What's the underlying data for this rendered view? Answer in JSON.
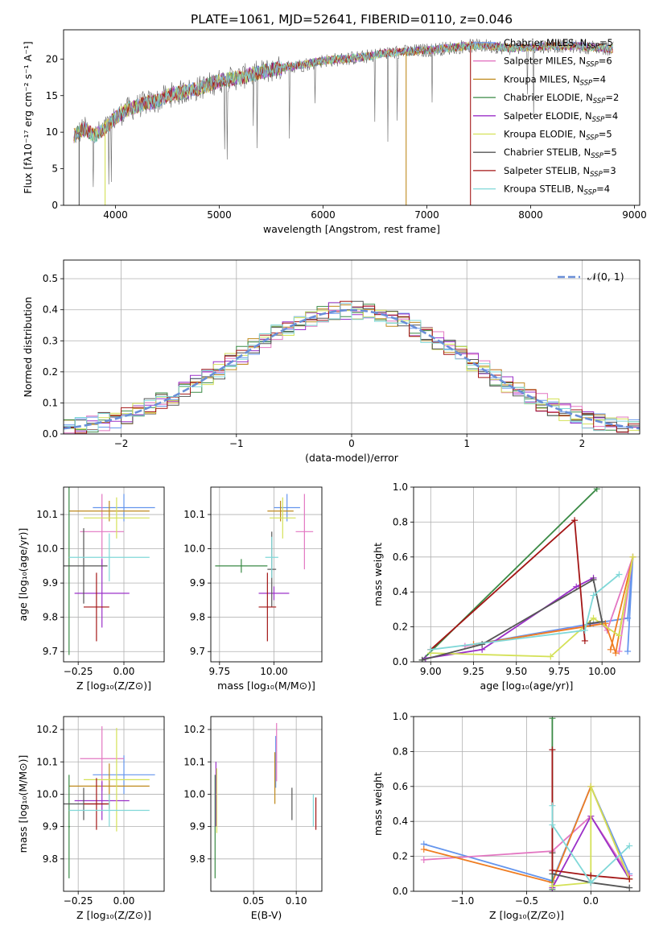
{
  "figure_title": "PLATE=1061, MJD=52641, FIBERID=0110, z=0.046",
  "model_colors": [
    "#6495ed",
    "#e377c2",
    "#bf8a1d",
    "#3a8a45",
    "#9b30c8",
    "#d4e157",
    "#555555",
    "#a31515",
    "#80d8d8"
  ],
  "chart_data": [
    {
      "id": "spectrum",
      "type": "line",
      "xlabel": "wavelength [Angstrom, rest frame]",
      "ylabel": "Flux [fλ10⁻¹⁷ erg cm⁻² s⁻¹ A⁻¹]",
      "xlim": [
        3500,
        9050
      ],
      "ylim": [
        0,
        24
      ],
      "xticks": [
        4000,
        5000,
        6000,
        7000,
        8000,
        9000
      ],
      "yticks": [
        0,
        5,
        10,
        15,
        20
      ],
      "legend_position": "right",
      "legend": [
        {
          "label": "Chabrier MILES, N",
          "sub": "SSP",
          "value": "=5",
          "color": "#6495ed"
        },
        {
          "label": "Salpeter MILES, N",
          "sub": "SSP",
          "value": "=6",
          "color": "#e377c2"
        },
        {
          "label": "Kroupa MILES, N",
          "sub": "SSP",
          "value": "=4",
          "color": "#bf8a1d"
        },
        {
          "label": "Chabrier ELODIE, N",
          "sub": "SSP",
          "value": "=2",
          "color": "#3a8a45"
        },
        {
          "label": "Salpeter ELODIE, N",
          "sub": "SSP",
          "value": "=4",
          "color": "#9b30c8"
        },
        {
          "label": "Kroupa ELODIE, N",
          "sub": "SSP",
          "value": "=5",
          "color": "#d4e157"
        },
        {
          "label": "Chabrier STELIB, N",
          "sub": "SSP",
          "value": "=5",
          "color": "#555555"
        },
        {
          "label": "Salpeter STELIB, N",
          "sub": "SSP",
          "value": "=3",
          "color": "#a31515"
        },
        {
          "label": "Kroupa STELIB, N",
          "sub": "SSP",
          "value": "=4",
          "color": "#80d8d8"
        }
      ],
      "continuum": {
        "x": [
          3600,
          3700,
          3800,
          3900,
          4000,
          4100,
          4200,
          4300,
          4400,
          4500,
          4600,
          4800,
          5000,
          5200,
          5400,
          5600,
          5800,
          6000,
          6200,
          6400,
          6600,
          6800,
          7000,
          7200,
          7400,
          7600,
          7800,
          8000,
          8200,
          8400,
          8600,
          8800
        ],
        "y": [
          9.5,
          10.5,
          9.5,
          10.5,
          12.0,
          13.0,
          13.5,
          14.0,
          14.2,
          15.0,
          15.3,
          16.0,
          17.0,
          17.5,
          18.2,
          18.8,
          19.2,
          19.8,
          20.0,
          20.3,
          20.8,
          21.0,
          21.2,
          21.5,
          21.8,
          21.8,
          21.5,
          21.6,
          21.8,
          21.8,
          21.6,
          21.4
        ]
      }
    },
    {
      "id": "residual_histogram",
      "type": "bar",
      "xlabel": "(data-model)/error",
      "ylabel": "Normed distribution",
      "xlim": [
        -2.5,
        2.5
      ],
      "ylim": [
        0,
        0.56
      ],
      "xticks": [
        -2,
        -1,
        0,
        1,
        2
      ],
      "yticks": [
        0.0,
        0.1,
        0.2,
        0.3,
        0.4,
        0.5
      ],
      "legend_position": "top-right",
      "reference_curve": {
        "label": "𝒩(0, 1)",
        "mean": 0,
        "sigma": 1,
        "color": "#6a8fd8"
      },
      "bin_width": 0.1
    },
    {
      "id": "age_vs_Z",
      "type": "scatter",
      "xlabel": "Z [log₁₀(Z/Z⊙)]",
      "ylabel": "age  [log₁₀(age/yr)]",
      "xlim": [
        -0.33,
        0.22
      ],
      "ylim": [
        9.67,
        10.18
      ],
      "xticks": [
        -0.25,
        0.0
      ],
      "yticks": [
        9.7,
        9.8,
        9.9,
        10.0,
        10.1
      ],
      "points": [
        {
          "x": 0.0,
          "y": 10.12,
          "xerr": 0.17,
          "yerr": 0.04
        },
        {
          "x": -0.12,
          "y": 10.05,
          "xerr": 0.12,
          "yerr": 0.11
        },
        {
          "x": -0.08,
          "y": 10.11,
          "xerr": 0.22,
          "yerr": 0.03
        },
        {
          "x": -0.3,
          "y": 9.95,
          "xerr": 0.005,
          "yerr": 0.26
        },
        {
          "x": -0.12,
          "y": 9.87,
          "xerr": 0.15,
          "yerr": 0.1
        },
        {
          "x": -0.04,
          "y": 10.09,
          "xerr": 0.18,
          "yerr": 0.06
        },
        {
          "x": -0.22,
          "y": 9.95,
          "xerr": 0.13,
          "yerr": 0.11
        },
        {
          "x": -0.15,
          "y": 9.83,
          "xerr": 0.07,
          "yerr": 0.1
        },
        {
          "x": -0.08,
          "y": 9.975,
          "xerr": 0.22,
          "yerr": 0.07
        }
      ]
    },
    {
      "id": "age_vs_mass",
      "type": "scatter",
      "xlabel": "mass [log₁₀(M/M⊙)]",
      "ylabel": "",
      "xlim": [
        9.71,
        10.22
      ],
      "ylim": [
        9.67,
        10.18
      ],
      "xticks": [
        9.75,
        10.0
      ],
      "yticks": [
        9.7,
        9.8,
        9.9,
        10.0,
        10.1
      ],
      "points": [
        {
          "x": 10.06,
          "y": 10.12,
          "xerr": 0.06,
          "yerr": 0.04
        },
        {
          "x": 10.14,
          "y": 10.05,
          "xerr": 0.04,
          "yerr": 0.11
        },
        {
          "x": 10.03,
          "y": 10.11,
          "xerr": 0.06,
          "yerr": 0.03
        },
        {
          "x": 9.85,
          "y": 9.95,
          "xerr": 0.12,
          "yerr": 0.02
        },
        {
          "x": 10.0,
          "y": 9.87,
          "xerr": 0.07,
          "yerr": 0.02
        },
        {
          "x": 10.04,
          "y": 10.09,
          "xerr": 0.06,
          "yerr": 0.06
        },
        {
          "x": 9.99,
          "y": 9.94,
          "xerr": 0.02,
          "yerr": 0.11
        },
        {
          "x": 9.97,
          "y": 9.83,
          "xerr": 0.04,
          "yerr": 0.1
        },
        {
          "x": 9.99,
          "y": 9.975,
          "xerr": 0.03,
          "yerr": 0.06
        }
      ]
    },
    {
      "id": "mass_weight_vs_age",
      "type": "line",
      "xlabel": "age  [log₁₀(age/yr)]",
      "ylabel": "mass weight",
      "xlim": [
        8.9,
        10.22
      ],
      "ylim": [
        0,
        1.0
      ],
      "xticks": [
        9.0,
        9.25,
        9.5,
        9.75,
        10.0
      ],
      "yticks": [
        0.0,
        0.2,
        0.4,
        0.6,
        0.8,
        1.0
      ],
      "grid": true,
      "series": [
        {
          "color": "#6495ed",
          "x": [
            9.25,
            9.95,
            10.15,
            10.18,
            10.15
          ],
          "y": [
            0.1,
            0.22,
            0.25,
            0.6,
            0.06
          ]
        },
        {
          "color": "#e377c2",
          "x": [
            9.2,
            10.0,
            10.03,
            10.18,
            10.1
          ],
          "y": [
            0.09,
            0.22,
            0.18,
            0.6,
            0.06
          ]
        },
        {
          "color": "#ef7d22",
          "x": [
            9.25,
            10.02,
            10.08,
            10.18,
            10.05
          ],
          "y": [
            0.1,
            0.22,
            0.05,
            0.6,
            0.07
          ]
        },
        {
          "color": "#3a8a45",
          "x": [
            8.95,
            9.97
          ],
          "y": [
            0.01,
            0.99
          ]
        },
        {
          "color": "#9b30c8",
          "x": [
            8.97,
            9.3,
            9.85,
            9.95
          ],
          "y": [
            0.02,
            0.07,
            0.43,
            0.48
          ]
        },
        {
          "color": "#d4e157",
          "x": [
            9.0,
            9.7,
            9.95,
            10.1,
            10.18
          ],
          "y": [
            0.05,
            0.03,
            0.25,
            0.15,
            0.6
          ]
        },
        {
          "color": "#555555",
          "x": [
            8.95,
            9.3,
            9.95,
            10.0,
            9.93
          ],
          "y": [
            0.01,
            0.1,
            0.47,
            0.23,
            0.22
          ]
        },
        {
          "color": "#a31515",
          "x": [
            9.0,
            9.84,
            9.9
          ],
          "y": [
            0.07,
            0.81,
            0.12
          ]
        },
        {
          "color": "#80d8d8",
          "x": [
            9.0,
            9.9,
            9.95,
            10.1
          ],
          "y": [
            0.07,
            0.18,
            0.38,
            0.5
          ]
        }
      ]
    },
    {
      "id": "mass_vs_Z",
      "type": "scatter",
      "xlabel": "Z [log₁₀(Z/Z⊙)]",
      "ylabel": "mass [log₁₀(M/M⊙)]",
      "xlim": [
        -0.33,
        0.22
      ],
      "ylim": [
        9.7,
        10.24
      ],
      "xticks": [
        -0.25,
        0.0
      ],
      "yticks": [
        9.8,
        9.9,
        10.0,
        10.1,
        10.2
      ],
      "points": [
        {
          "x": 0.0,
          "y": 10.06,
          "xerr": 0.17,
          "yerr": 0.06
        },
        {
          "x": -0.12,
          "y": 10.11,
          "xerr": 0.12,
          "yerr": 0.1
        },
        {
          "x": -0.08,
          "y": 10.025,
          "xerr": 0.22,
          "yerr": 0.07
        },
        {
          "x": -0.3,
          "y": 9.9,
          "xerr": 0.005,
          "yerr": 0.16
        },
        {
          "x": -0.12,
          "y": 9.98,
          "xerr": 0.15,
          "yerr": 0.06
        },
        {
          "x": -0.04,
          "y": 10.045,
          "xerr": 0.18,
          "yerr": 0.16
        },
        {
          "x": -0.22,
          "y": 9.97,
          "xerr": 0.13,
          "yerr": 0.05
        },
        {
          "x": -0.15,
          "y": 9.97,
          "xerr": 0.07,
          "yerr": 0.08
        },
        {
          "x": -0.08,
          "y": 9.95,
          "xerr": 0.22,
          "yerr": 0.05
        }
      ]
    },
    {
      "id": "mass_vs_EBV",
      "type": "scatter",
      "xlabel": "E(B-V)",
      "ylabel": "",
      "xlim": [
        0.0,
        0.13
      ],
      "ylim": [
        9.7,
        10.24
      ],
      "xticks": [
        0.05,
        0.1
      ],
      "yticks": [
        9.8,
        9.9,
        10.0,
        10.1,
        10.2
      ],
      "points": [
        {
          "x": 0.076,
          "y": 10.1,
          "xerr": 0.0,
          "yerr": 0.08
        },
        {
          "x": 0.077,
          "y": 10.13,
          "xerr": 0.0,
          "yerr": 0.09
        },
        {
          "x": 0.075,
          "y": 10.05,
          "xerr": 0.0,
          "yerr": 0.08
        },
        {
          "x": 0.005,
          "y": 9.9,
          "xerr": 0.0,
          "yerr": 0.16
        },
        {
          "x": 0.006,
          "y": 10.0,
          "xerr": 0.0,
          "yerr": 0.1
        },
        {
          "x": 0.007,
          "y": 9.98,
          "xerr": 0.0,
          "yerr": 0.1
        },
        {
          "x": 0.095,
          "y": 9.97,
          "xerr": 0.0,
          "yerr": 0.05
        },
        {
          "x": 0.123,
          "y": 9.94,
          "xerr": 0.0,
          "yerr": 0.05
        },
        {
          "x": 0.12,
          "y": 9.95,
          "xerr": 0.0,
          "yerr": 0.05
        }
      ]
    },
    {
      "id": "mass_weight_vs_Z",
      "type": "line",
      "xlabel": "Z [log₁₀(Z/Z⊙)]",
      "ylabel": "mass weight",
      "xlim": [
        -1.38,
        0.38
      ],
      "ylim": [
        0,
        1.0
      ],
      "xticks": [
        -1.0,
        -0.5,
        0.0
      ],
      "yticks": [
        0.0,
        0.2,
        0.4,
        0.6,
        0.8,
        1.0
      ],
      "grid": true,
      "series": [
        {
          "color": "#6495ed",
          "x": [
            -1.3,
            -0.3,
            0.0,
            0.3
          ],
          "y": [
            0.27,
            0.06,
            0.6,
            0.1
          ]
        },
        {
          "color": "#e377c2",
          "x": [
            -1.3,
            -0.3,
            0.0,
            0.3
          ],
          "y": [
            0.18,
            0.23,
            0.43,
            0.09
          ]
        },
        {
          "color": "#ef7d22",
          "x": [
            -1.3,
            -0.3,
            0.0,
            0.3
          ],
          "y": [
            0.24,
            0.05,
            0.6,
            0.07
          ]
        },
        {
          "color": "#3a8a45",
          "x": [
            -0.3,
            -0.3
          ],
          "y": [
            0.01,
            0.99
          ]
        },
        {
          "color": "#9b30c8",
          "x": [
            -0.3,
            0.0,
            0.3
          ],
          "y": [
            0.02,
            0.43,
            0.07
          ]
        },
        {
          "color": "#d4e157",
          "x": [
            -0.3,
            0.0,
            0.0,
            0.3
          ],
          "y": [
            0.03,
            0.05,
            0.6,
            0.07
          ]
        },
        {
          "color": "#555555",
          "x": [
            -0.3,
            -0.3,
            0.0,
            0.3
          ],
          "y": [
            0.22,
            0.1,
            0.05,
            0.02
          ]
        },
        {
          "color": "#a31515",
          "x": [
            -0.3,
            -0.3,
            0.0,
            0.3
          ],
          "y": [
            0.81,
            0.12,
            0.09,
            0.07
          ]
        },
        {
          "color": "#80d8d8",
          "x": [
            -0.3,
            -0.3,
            0.0,
            0.3
          ],
          "y": [
            0.49,
            0.38,
            0.05,
            0.26
          ]
        }
      ]
    }
  ]
}
